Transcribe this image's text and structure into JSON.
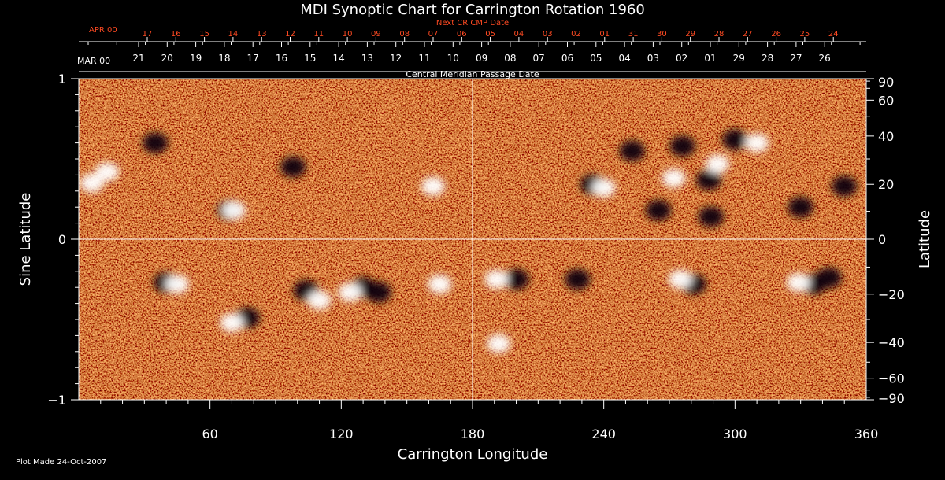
{
  "chart_data": {
    "type": "heatmap",
    "title": "MDI Synoptic Chart for Carrington Rotation 1960",
    "xlabel": "Carrington Longitude",
    "ylabel_left": "Sine Latitude",
    "ylabel_right": "Latitude",
    "xlim": [
      0,
      360
    ],
    "ylim": [
      -1,
      1
    ],
    "x_ticks": [
      "60",
      "120",
      "180",
      "240",
      "300",
      "360"
    ],
    "x_tick_values": [
      60,
      120,
      180,
      240,
      300,
      360
    ],
    "y_left_ticks": [
      "1",
      "0",
      "−1"
    ],
    "y_left_tick_values": [
      1,
      0,
      -1
    ],
    "y_right_ticks": [
      "90",
      "60",
      "40",
      "20",
      "0",
      "−20",
      "−40",
      "−60",
      "−90"
    ],
    "y_right_tick_values": [
      90,
      60,
      40,
      20,
      0,
      -20,
      -40,
      -60,
      -90
    ],
    "next_cr_label": "Next CR CMP Date",
    "next_cr_month": "APR 00",
    "next_cr_dates": [
      "17",
      "16",
      "15",
      "14",
      "13",
      "12",
      "11",
      "10",
      "09",
      "08",
      "07",
      "06",
      "05",
      "04",
      "03",
      "02",
      "01",
      "31",
      "30",
      "29",
      "28",
      "27",
      "26",
      "25",
      "24"
    ],
    "cmp_label": "Central Meridian Passage Date",
    "cmp_month": "MAR 00",
    "cmp_dates": [
      "21",
      "20",
      "19",
      "18",
      "17",
      "16",
      "15",
      "14",
      "13",
      "12",
      "11",
      "10",
      "09",
      "08",
      "07",
      "06",
      "05",
      "04",
      "03",
      "02",
      "01",
      "29",
      "28",
      "27",
      "26"
    ],
    "grid_lines": {
      "longitude": 180,
      "sine_latitude": 0
    },
    "positive_regions": [
      {
        "lon": 6,
        "slat": 0.35
      },
      {
        "lon": 13,
        "slat": 0.42
      },
      {
        "lon": 71,
        "slat": 0.18
      },
      {
        "lon": 162,
        "slat": 0.33
      },
      {
        "lon": 240,
        "slat": 0.32
      },
      {
        "lon": 272,
        "slat": 0.38
      },
      {
        "lon": 292,
        "slat": 0.47
      },
      {
        "lon": 310,
        "slat": 0.6
      },
      {
        "lon": 45,
        "slat": -0.28
      },
      {
        "lon": 70,
        "slat": -0.52
      },
      {
        "lon": 110,
        "slat": -0.38
      },
      {
        "lon": 124,
        "slat": -0.33
      },
      {
        "lon": 165,
        "slat": -0.28
      },
      {
        "lon": 191,
        "slat": -0.25
      },
      {
        "lon": 275,
        "slat": -0.25
      },
      {
        "lon": 329,
        "slat": -0.27
      },
      {
        "lon": 192,
        "slat": -0.65
      }
    ],
    "negative_regions": [
      {
        "lon": 35,
        "slat": 0.6
      },
      {
        "lon": 69,
        "slat": 0.18
      },
      {
        "lon": 98,
        "slat": 0.45
      },
      {
        "lon": 235,
        "slat": 0.34
      },
      {
        "lon": 253,
        "slat": 0.55
      },
      {
        "lon": 276,
        "slat": 0.58
      },
      {
        "lon": 300,
        "slat": 0.62
      },
      {
        "lon": 288,
        "slat": 0.37
      },
      {
        "lon": 265,
        "slat": 0.18
      },
      {
        "lon": 289,
        "slat": 0.14
      },
      {
        "lon": 330,
        "slat": 0.2
      },
      {
        "lon": 350,
        "slat": 0.33
      },
      {
        "lon": 40,
        "slat": -0.27
      },
      {
        "lon": 77,
        "slat": -0.49
      },
      {
        "lon": 104,
        "slat": -0.32
      },
      {
        "lon": 130,
        "slat": -0.3
      },
      {
        "lon": 137,
        "slat": -0.33
      },
      {
        "lon": 200,
        "slat": -0.25
      },
      {
        "lon": 228,
        "slat": -0.25
      },
      {
        "lon": 281,
        "slat": -0.28
      },
      {
        "lon": 336,
        "slat": -0.28
      },
      {
        "lon": 343,
        "slat": -0.24
      }
    ],
    "footer": "Plot Made 24-Oct-2007"
  }
}
